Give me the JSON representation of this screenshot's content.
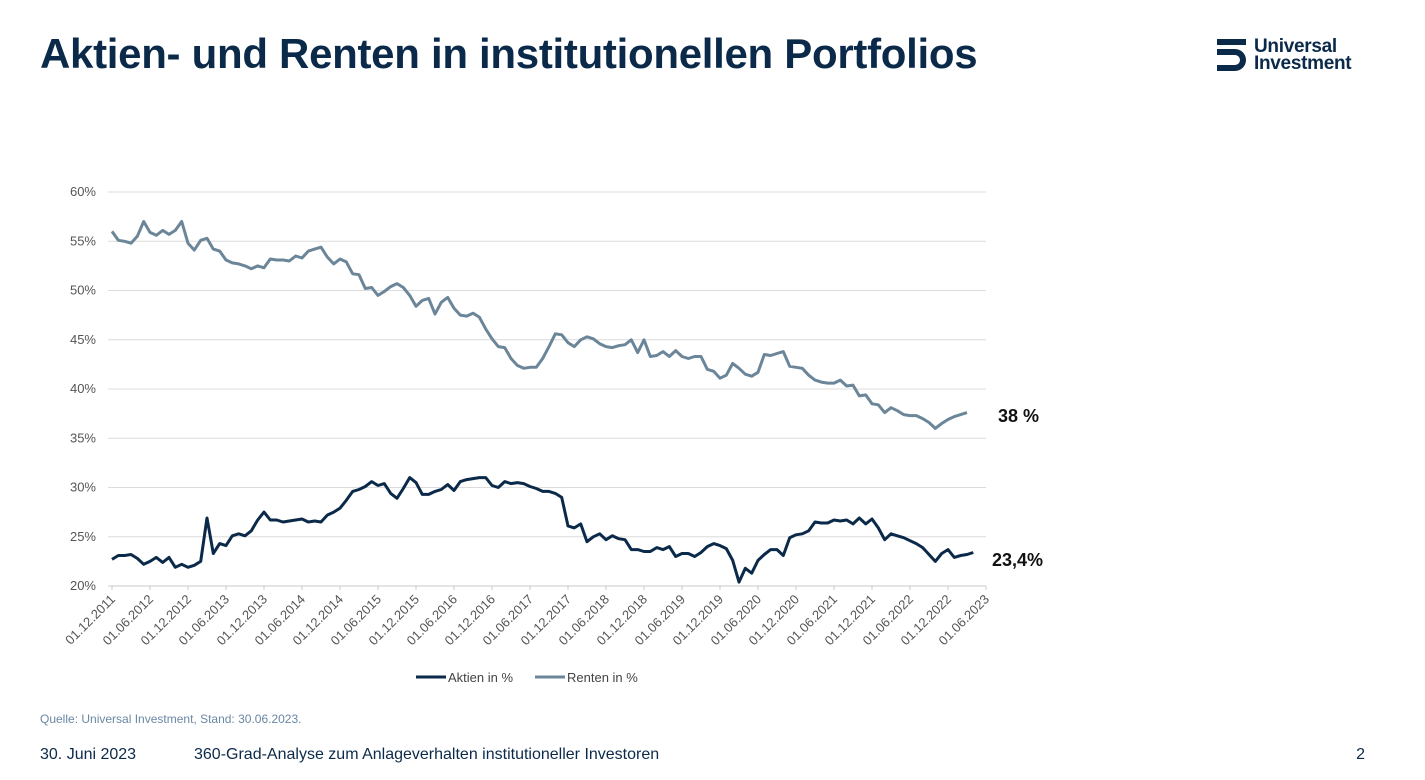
{
  "header": {
    "title": "Aktien- und Renten in institutionellen Portfolios"
  },
  "logo": {
    "line1": "Universal",
    "line2": "Investment"
  },
  "chart_data": {
    "type": "line",
    "title": "",
    "xlabel": "",
    "ylabel": "",
    "ylim": [
      20,
      60
    ],
    "yticks": [
      "20%",
      "25%",
      "30%",
      "35%",
      "40%",
      "45%",
      "50%",
      "55%",
      "60%"
    ],
    "xtick_labels": [
      "01.12.2011",
      "01.06.2012",
      "01.12.2012",
      "01.06.2013",
      "01.12.2013",
      "01.06.2014",
      "01.12.2014",
      "01.06.2015",
      "01.12.2015",
      "01.06.2016",
      "01.12.2016",
      "01.06.2017",
      "01.12.2017",
      "01.06.2018",
      "01.12.2018",
      "01.06.2019",
      "01.12.2019",
      "01.06.2020",
      "01.12.2020",
      "01.06.2021",
      "01.12.2021",
      "01.06.2022",
      "01.12.2022",
      "01.06.2023"
    ],
    "grid": true,
    "legend_position": "bottom",
    "series": [
      {
        "name": "Aktien in %",
        "color": "#0b2a4a",
        "end_label": "23,4%",
        "values": [
          22.7,
          23.1,
          23.1,
          23.2,
          22.8,
          22.2,
          22.5,
          22.9,
          22.4,
          22.9,
          21.9,
          22.2,
          21.9,
          22.1,
          22.5,
          26.9,
          23.3,
          24.3,
          24.1,
          25.1,
          25.3,
          25.1,
          25.6,
          26.7,
          27.5,
          26.7,
          26.7,
          26.5,
          26.6,
          26.7,
          26.8,
          26.5,
          26.6,
          26.5,
          27.2,
          27.5,
          27.9,
          28.7,
          29.6,
          29.8,
          30.1,
          30.6,
          30.2,
          30.4,
          29.4,
          28.9,
          29.9,
          31.0,
          30.5,
          29.3,
          29.3,
          29.6,
          29.8,
          30.3,
          29.7,
          30.6,
          30.8,
          30.9,
          31.0,
          31.0,
          30.2,
          30.0,
          30.6,
          30.4,
          30.5,
          30.4,
          30.1,
          29.9,
          29.6,
          29.6,
          29.4,
          29.0,
          26.1,
          25.9,
          26.3,
          24.5,
          25.0,
          25.3,
          24.7,
          25.1,
          24.8,
          24.7,
          23.7,
          23.7,
          23.5,
          23.5,
          23.9,
          23.7,
          24.0,
          23.0,
          23.3,
          23.3,
          23.0,
          23.4,
          24.0,
          24.3,
          24.1,
          23.8,
          22.6,
          20.4,
          21.8,
          21.3,
          22.6,
          23.2,
          23.7,
          23.7,
          23.1,
          24.9,
          25.2,
          25.3,
          25.6,
          26.5,
          26.4,
          26.4,
          26.7,
          26.6,
          26.7,
          26.3,
          26.9,
          26.3,
          26.8,
          25.9,
          24.7,
          25.3,
          25.1,
          24.9,
          24.6,
          24.3,
          23.9,
          23.2,
          22.5,
          23.3,
          23.7,
          22.9,
          23.1,
          23.2,
          23.4
        ]
      },
      {
        "name": "Renten in %",
        "color": "#6b8599",
        "end_label": "38 %",
        "values": [
          56.0,
          55.1,
          55.0,
          54.8,
          55.5,
          57.0,
          55.9,
          55.6,
          56.1,
          55.7,
          56.1,
          57.0,
          54.8,
          54.1,
          55.1,
          55.3,
          54.2,
          54.0,
          53.1,
          52.8,
          52.7,
          52.5,
          52.2,
          52.5,
          52.3,
          53.2,
          53.1,
          53.1,
          53.0,
          53.5,
          53.3,
          54.0,
          54.2,
          54.4,
          53.4,
          52.7,
          53.2,
          52.9,
          51.7,
          51.6,
          50.2,
          50.3,
          49.5,
          49.9,
          50.4,
          50.7,
          50.3,
          49.5,
          48.4,
          49.0,
          49.2,
          47.6,
          48.8,
          49.3,
          48.2,
          47.5,
          47.4,
          47.7,
          47.3,
          46.1,
          45.1,
          44.3,
          44.2,
          43.1,
          42.4,
          42.1,
          42.2,
          42.2,
          43.1,
          44.3,
          45.6,
          45.5,
          44.7,
          44.3,
          45.0,
          45.3,
          45.1,
          44.6,
          44.3,
          44.2,
          44.4,
          44.5,
          45.0,
          43.7,
          45.0,
          43.3,
          43.4,
          43.8,
          43.3,
          43.9,
          43.3,
          43.1,
          43.3,
          43.3,
          42.0,
          41.8,
          41.1,
          41.4,
          42.6,
          42.1,
          41.5,
          41.3,
          41.7,
          43.5,
          43.4,
          43.6,
          43.8,
          42.3,
          42.2,
          42.1,
          41.4,
          40.9,
          40.7,
          40.6,
          40.6,
          40.9,
          40.3,
          40.4,
          39.3,
          39.4,
          38.5,
          38.4,
          37.6,
          38.1,
          37.8,
          37.4,
          37.3,
          37.3,
          37.0,
          36.6,
          36.0,
          36.5,
          36.9,
          37.2,
          37.4,
          37.6
        ]
      }
    ]
  },
  "source": "Quelle: Universal Investment, Stand: 30.06.2023.",
  "footer": {
    "date": "30. Juni 2023",
    "title": "360-Grad-Analyse zum Anlageverhalten institutioneller Investoren",
    "page": "2"
  }
}
